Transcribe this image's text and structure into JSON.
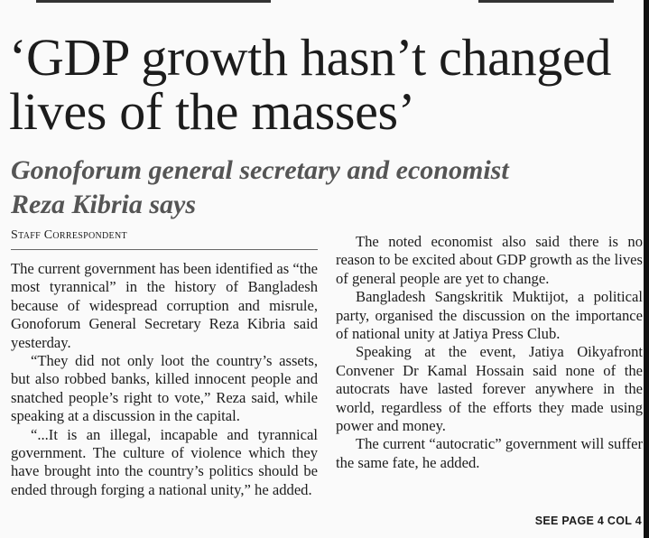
{
  "headline": [
    "‘GDP growth hasn’t changed",
    "lives of the masses’"
  ],
  "subheadline": [
    "Gonoforum general secretary and economist",
    "Reza Kibria says"
  ],
  "byline": "Staff Correspondent",
  "column_1": [
    "The current government has been identified as “the most tyrannical” in the history of Bangladesh because of widespread corruption and misrule, Gonoforum General Secretary Reza Kibria said yesterday.",
    "“They did not only loot the country’s assets, but also robbed banks, killed innocent people and snatched people’s right to vote,” Reza said, while speaking at a discussion in the capital.",
    "“...It is an illegal, incapable and tyrannical government. The culture of violence which they have brought into the country’s politics should be ended through forging a national unity,” he added."
  ],
  "column_2": [
    "The noted economist also said there is no reason to be excited about GDP growth as the lives of general people are yet to change.",
    "Bangladesh Sangskritik Muktijot, a political party, organised the discussion on the importance of national unity at Jatiya Press Club.",
    "Speaking at the event, Jatiya Oikyafront Convener Dr Kamal Hossain said none of the autocrats have lasted forever anywhere in the world, regardless of the efforts they made using power and money.",
    "The current “autocratic” government will suffer the same fate, he added."
  ],
  "jump_line": "SEE PAGE 4 COL 4"
}
